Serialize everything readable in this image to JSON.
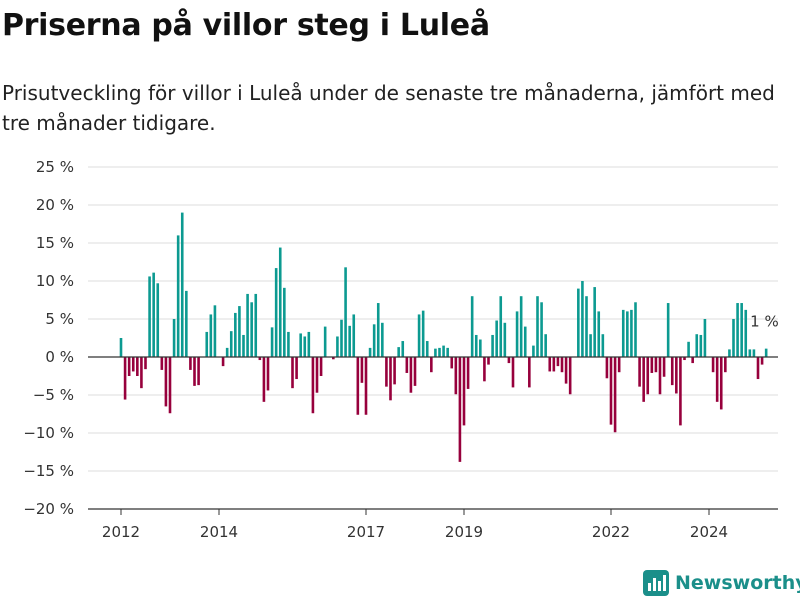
{
  "header": {
    "title": "Priserna på villor steg i Luleå",
    "subtitle": "Prisutveckling för villor i Luleå under de senaste tre månaderna, jämfört med tre månader tidigare."
  },
  "brand": {
    "name": "Newsworthy",
    "logo_icon": "bar-chart-logo-icon"
  },
  "colors": {
    "positive": "#0c9a91",
    "negative": "#97003c",
    "grid": "#dddddd",
    "axis": "#333333",
    "brand": "#1b8f8a"
  },
  "chart_data": {
    "type": "bar",
    "title": "Priserna på villor steg i Luleå",
    "xlabel": "",
    "ylabel": "",
    "ylim": [
      -20,
      25
    ],
    "yticks": [
      25,
      20,
      15,
      10,
      5,
      0,
      -5,
      -10,
      -15,
      -20
    ],
    "ytick_labels": [
      "25 %",
      "20 %",
      "15 %",
      "10 %",
      "5 %",
      "0 %",
      "−5 %",
      "−10 %",
      "−15 %",
      "−20 %"
    ],
    "xticks": [
      2012,
      2014,
      2017,
      2019,
      2022,
      2024
    ],
    "xtick_labels": [
      "2012",
      "2014",
      "2017",
      "2019",
      "2022",
      "2024"
    ],
    "x_start": "2012-01",
    "x_interval": "month",
    "grid": true,
    "last_value_label": "1 %",
    "values": [
      2.5,
      -5.6,
      -2.5,
      -1.9,
      -2.5,
      -4.1,
      -1.6,
      10.6,
      11.1,
      9.7,
      -1.7,
      -6.5,
      -7.4,
      5.0,
      16.0,
      19.0,
      8.7,
      -1.7,
      -3.8,
      -3.7,
      0.0,
      3.3,
      5.6,
      6.8,
      0.0,
      -1.2,
      1.2,
      3.4,
      5.8,
      6.7,
      2.9,
      8.3,
      7.2,
      8.3,
      -0.4,
      -5.9,
      -4.4,
      3.9,
      11.7,
      14.4,
      9.1,
      3.3,
      -4.1,
      -2.9,
      3.1,
      2.7,
      3.3,
      -7.4,
      -4.7,
      -2.5,
      4.0,
      0.0,
      -0.3,
      2.7,
      4.9,
      11.8,
      4.1,
      5.6,
      -7.6,
      -3.4,
      -7.6,
      1.2,
      4.3,
      7.1,
      4.5,
      -3.9,
      -5.7,
      -3.6,
      1.3,
      2.1,
      -2.1,
      -4.7,
      -3.8,
      5.6,
      6.1,
      2.1,
      -2.0,
      1.1,
      1.2,
      1.5,
      1.2,
      -1.5,
      -4.9,
      -13.8,
      -9.0,
      -4.2,
      8.0,
      2.9,
      2.3,
      -3.2,
      -1.0,
      2.9,
      4.8,
      8.0,
      4.5,
      -0.8,
      -4.0,
      6.0,
      8.0,
      4.0,
      -4.0,
      1.5,
      8.0,
      7.2,
      3.0,
      -1.9,
      -1.9,
      -1.2,
      -2.0,
      -3.5,
      -4.9,
      0.0,
      9.0,
      10.0,
      8.0,
      3.0,
      9.2,
      6.0,
      3.0,
      -2.8,
      -8.9,
      -9.9,
      -2.0,
      6.2,
      6.0,
      6.2,
      7.2,
      -3.9,
      -5.9,
      -4.9,
      -2.1,
      -2.0,
      -4.9,
      -2.6,
      7.1,
      -3.7,
      -4.8,
      -9.0,
      -0.4,
      2.0,
      -0.8,
      3.0,
      2.9,
      5.0,
      0.0,
      -2.0,
      -5.9,
      -6.9,
      -2.0,
      1.0,
      5.0,
      7.1,
      7.1,
      6.2,
      1.0,
      1.0,
      -2.9,
      -1.0,
      1.1
    ]
  }
}
